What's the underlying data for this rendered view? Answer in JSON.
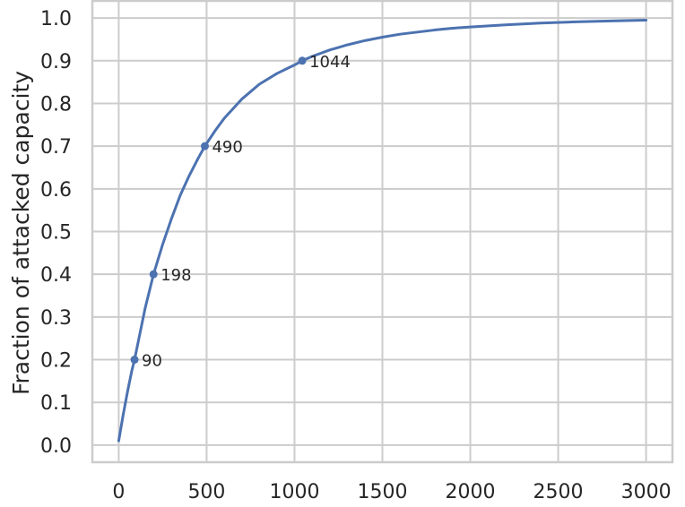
{
  "chart_data": {
    "type": "line",
    "title": "",
    "xlabel": "",
    "ylabel": "Fraction of attacked capacity",
    "xlim": [
      -150,
      3150
    ],
    "ylim": [
      -0.04,
      1.04
    ],
    "grid": true,
    "x_ticks": [
      0,
      500,
      1000,
      1500,
      2000,
      2500,
      3000
    ],
    "y_ticks": [
      0.0,
      0.1,
      0.2,
      0.3,
      0.4,
      0.5,
      0.6,
      0.7,
      0.8,
      0.9,
      1.0
    ],
    "series": [
      {
        "color": "#4c72b0",
        "x": [
          0,
          25,
          50,
          75,
          90,
          120,
          150,
          198,
          250,
          300,
          350,
          400,
          450,
          490,
          550,
          600,
          700,
          800,
          900,
          1000,
          1044,
          1100,
          1200,
          1300,
          1400,
          1500,
          1600,
          1700,
          1800,
          1900,
          2000,
          2200,
          2400,
          2600,
          2800,
          3000
        ],
        "y": [
          0.01,
          0.07,
          0.125,
          0.175,
          0.2,
          0.26,
          0.32,
          0.4,
          0.47,
          0.53,
          0.585,
          0.63,
          0.67,
          0.7,
          0.737,
          0.765,
          0.81,
          0.845,
          0.87,
          0.89,
          0.9,
          0.91,
          0.925,
          0.937,
          0.947,
          0.955,
          0.962,
          0.967,
          0.972,
          0.976,
          0.979,
          0.984,
          0.988,
          0.991,
          0.993,
          0.995
        ]
      }
    ],
    "annotations": [
      {
        "x": 90,
        "y": 0.2,
        "text": "90"
      },
      {
        "x": 198,
        "y": 0.4,
        "text": "198"
      },
      {
        "x": 490,
        "y": 0.7,
        "text": "490"
      },
      {
        "x": 1044,
        "y": 0.9,
        "text": "1044"
      }
    ],
    "colors": {
      "background": "#ffffff",
      "grid": "#cccccc",
      "frame": "#cccccc",
      "text": "#262626"
    }
  }
}
